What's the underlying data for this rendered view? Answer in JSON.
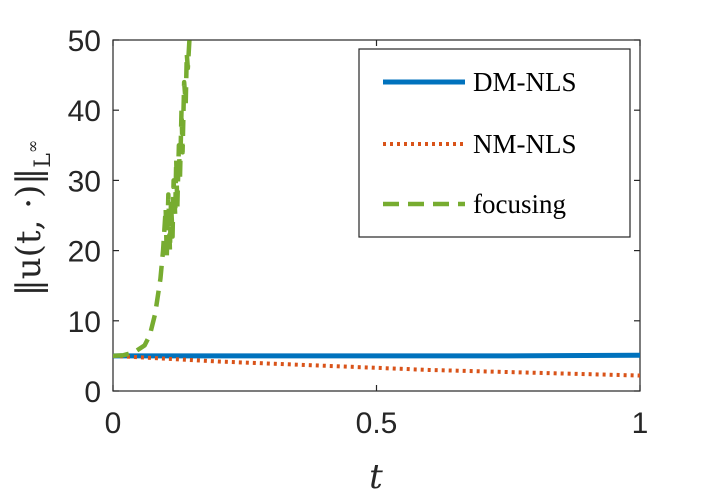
{
  "chart_data": {
    "type": "line",
    "title": "",
    "xlabel": "t",
    "ylabel": "‖u(t,·)‖_{L^∞}",
    "xlim": [
      0,
      1
    ],
    "ylim": [
      0,
      50
    ],
    "xticks": [
      "0",
      "0.5",
      "1"
    ],
    "yticks": [
      "0",
      "10",
      "20",
      "30",
      "40",
      "50"
    ],
    "grid": false,
    "legend_position": "top-right",
    "series": [
      {
        "name": "DM-NLS",
        "color": "#0072BD",
        "style": "solid",
        "x": [
          0,
          0.25,
          0.5,
          0.75,
          1.0
        ],
        "y": [
          5.0,
          5.0,
          5.0,
          5.0,
          5.1
        ]
      },
      {
        "name": "NM-NLS",
        "color": "#D95319",
        "style": "dotted",
        "x": [
          0,
          0.1,
          0.2,
          0.3,
          0.4,
          0.5,
          0.6,
          0.7,
          0.8,
          0.9,
          1.0
        ],
        "y": [
          5.0,
          4.6,
          4.2,
          3.9,
          3.6,
          3.3,
          3.0,
          2.8,
          2.6,
          2.4,
          2.2
        ]
      },
      {
        "name": "focusing",
        "color": "#77AC30",
        "style": "dashed",
        "x": [
          0,
          0.02,
          0.04,
          0.06,
          0.07,
          0.08,
          0.09,
          0.095,
          0.1,
          0.102,
          0.105,
          0.108,
          0.11,
          0.113,
          0.115,
          0.118,
          0.12,
          0.122,
          0.125,
          0.127,
          0.13,
          0.132,
          0.135,
          0.138,
          0.14,
          0.142,
          0.145
        ],
        "y": [
          5.0,
          5.1,
          5.5,
          6.5,
          8.0,
          11.0,
          16.0,
          20.0,
          26.0,
          19.0,
          28.0,
          20.0,
          27.0,
          22.0,
          30.0,
          25.0,
          33.0,
          26.0,
          35.0,
          30.0,
          40.0,
          34.0,
          44.0,
          41.0,
          48.0,
          46.0,
          50.0
        ]
      }
    ]
  }
}
